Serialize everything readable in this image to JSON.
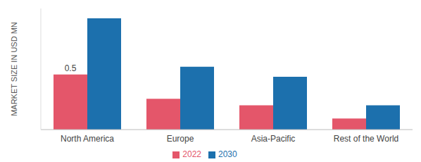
{
  "chart_data": {
    "type": "bar",
    "y_label": "MARKET SIZE IN USD MN",
    "categories": [
      "North America",
      "Europe",
      "Asia-Pacific",
      "Rest of the World"
    ],
    "series": [
      {
        "name": "2022",
        "color": "#e4566a",
        "values": [
          0.5,
          0.28,
          0.22,
          0.1
        ],
        "value_labels": [
          "0.5",
          null,
          null,
          null
        ]
      },
      {
        "name": "2030",
        "color": "#1c70ad",
        "values": [
          1.01,
          0.57,
          0.48,
          0.22
        ]
      }
    ],
    "ylim": [
      0,
      1.1
    ],
    "grid": false,
    "legend": "bottom",
    "tick_labels": "x"
  }
}
